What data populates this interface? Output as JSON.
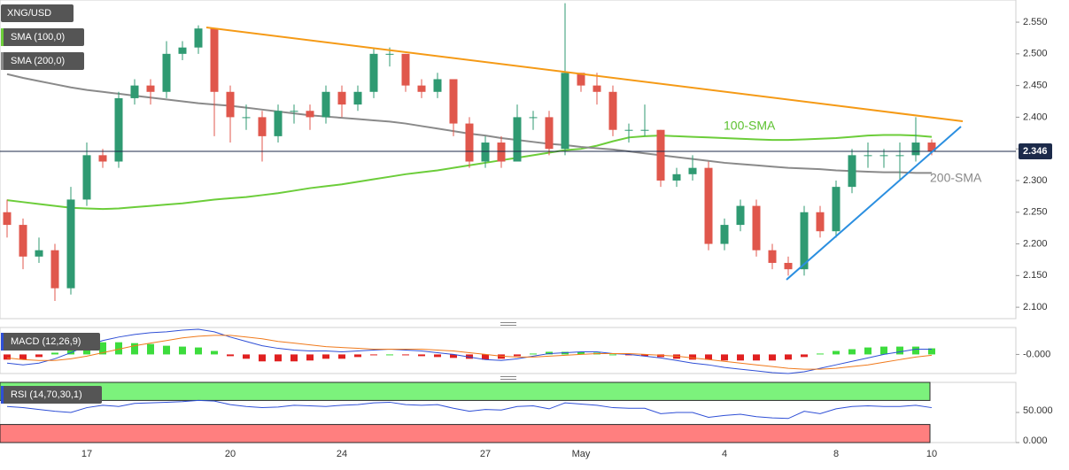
{
  "chart_data": {
    "type": "candlestick",
    "title": "XNG/USD",
    "categories": [
      null,
      null,
      null,
      null,
      null,
      "17",
      null,
      null,
      null,
      null,
      null,
      null,
      null,
      null,
      "20",
      null,
      null,
      null,
      null,
      null,
      null,
      "24",
      null,
      null,
      null,
      null,
      null,
      null,
      null,
      null,
      "27",
      null,
      null,
      null,
      null,
      null,
      "May",
      null,
      null,
      null,
      null,
      null,
      null,
      null,
      null,
      "4",
      null,
      null,
      null,
      null,
      null,
      null,
      "8",
      null,
      null,
      null,
      null,
      null,
      "10"
    ],
    "open": [
      2.25,
      2.23,
      2.18,
      2.19,
      2.13,
      2.27,
      2.34,
      2.33,
      2.43,
      2.45,
      2.44,
      2.5,
      2.51,
      2.54,
      2.44,
      2.4,
      2.4,
      2.37,
      2.41,
      2.41,
      2.4,
      2.44,
      2.42,
      2.44,
      2.5,
      2.5,
      2.45,
      2.44,
      2.46,
      2.39,
      2.33,
      2.36,
      2.33,
      2.4,
      2.4,
      2.35,
      2.47,
      2.45,
      2.44,
      2.38,
      2.38,
      2.38,
      2.3,
      2.31,
      2.32,
      2.2,
      2.23,
      2.26,
      2.19,
      2.17,
      2.16,
      2.25,
      2.22,
      2.29,
      2.34,
      2.34,
      2.34,
      2.34,
      2.36
    ],
    "high": [
      2.27,
      2.24,
      2.21,
      2.2,
      2.29,
      2.36,
      2.35,
      2.44,
      2.46,
      2.46,
      2.52,
      2.52,
      2.545,
      2.54,
      2.45,
      2.42,
      2.41,
      2.42,
      2.42,
      2.42,
      2.45,
      2.45,
      2.45,
      2.51,
      2.51,
      2.5,
      2.46,
      2.47,
      2.46,
      2.4,
      2.37,
      2.37,
      2.42,
      2.41,
      2.41,
      2.58,
      2.47,
      2.47,
      2.45,
      2.39,
      2.42,
      2.38,
      2.32,
      2.34,
      2.33,
      2.24,
      2.27,
      2.27,
      2.2,
      2.18,
      2.26,
      2.26,
      2.3,
      2.35,
      2.36,
      2.35,
      2.36,
      2.4,
      2.365
    ],
    "low": [
      2.21,
      2.16,
      2.17,
      2.11,
      2.12,
      2.26,
      2.32,
      2.32,
      2.42,
      2.42,
      2.43,
      2.49,
      2.5,
      2.37,
      2.36,
      2.38,
      2.33,
      2.36,
      2.39,
      2.38,
      2.39,
      2.4,
      2.41,
      2.43,
      2.48,
      2.44,
      2.43,
      2.43,
      2.37,
      2.32,
      2.32,
      2.32,
      2.33,
      2.38,
      2.34,
      2.34,
      2.44,
      2.42,
      2.37,
      2.36,
      2.37,
      2.29,
      2.29,
      2.3,
      2.19,
      2.19,
      2.22,
      2.18,
      2.16,
      2.15,
      2.15,
      2.21,
      2.21,
      2.28,
      2.32,
      2.32,
      2.3,
      2.33,
      2.34
    ],
    "close": [
      2.23,
      2.18,
      2.19,
      2.13,
      2.27,
      2.34,
      2.33,
      2.43,
      2.45,
      2.44,
      2.5,
      2.51,
      2.54,
      2.44,
      2.4,
      2.4,
      2.37,
      2.41,
      2.41,
      2.4,
      2.44,
      2.42,
      2.44,
      2.5,
      2.5,
      2.45,
      2.44,
      2.46,
      2.39,
      2.33,
      2.36,
      2.33,
      2.4,
      2.4,
      2.35,
      2.47,
      2.45,
      2.44,
      2.38,
      2.38,
      2.38,
      2.3,
      2.31,
      2.32,
      2.2,
      2.23,
      2.26,
      2.19,
      2.17,
      2.16,
      2.25,
      2.22,
      2.29,
      2.34,
      2.34,
      2.34,
      2.34,
      2.36,
      2.346
    ],
    "up_color": "#2f9a72",
    "down_color": "#e0574c",
    "ylim": [
      2.082,
      2.585
    ],
    "yticks": [
      {
        "value": 2.55,
        "label": "2.550"
      },
      {
        "value": 2.5,
        "label": "2.500"
      },
      {
        "value": 2.45,
        "label": "2.450"
      },
      {
        "value": 2.4,
        "label": "2.400"
      },
      {
        "value": 2.35,
        "label": "2.350"
      },
      {
        "value": 2.3,
        "label": "2.300"
      },
      {
        "value": 2.25,
        "label": "2.250"
      },
      {
        "value": 2.2,
        "label": "2.200"
      },
      {
        "value": 2.15,
        "label": "2.150"
      },
      {
        "value": 2.1,
        "label": "2.100"
      }
    ],
    "last_price": 2.346,
    "series": [
      {
        "name": "SMA (100,0)",
        "color": "#6ccd3a",
        "values": [
          2.269,
          2.266,
          2.263,
          2.26,
          2.257,
          2.256,
          2.255,
          2.256,
          2.258,
          2.26,
          2.262,
          2.264,
          2.267,
          2.27,
          2.272,
          2.274,
          2.277,
          2.28,
          2.284,
          2.288,
          2.291,
          2.294,
          2.298,
          2.302,
          2.306,
          2.31,
          2.313,
          2.316,
          2.32,
          2.324,
          2.328,
          2.332,
          2.336,
          2.34,
          2.344,
          2.348,
          2.35,
          2.355,
          2.362,
          2.368,
          2.37,
          2.371,
          2.37,
          2.369,
          2.368,
          2.367,
          2.366,
          2.365,
          2.364,
          2.364,
          2.365,
          2.366,
          2.367,
          2.369,
          2.371,
          2.372,
          2.372,
          2.371,
          2.369
        ]
      },
      {
        "name": "SMA (200,0)",
        "color": "#8a8a8a",
        "values": [
          2.468,
          2.462,
          2.457,
          2.452,
          2.447,
          2.443,
          2.44,
          2.437,
          2.434,
          2.431,
          2.428,
          2.425,
          2.422,
          2.42,
          2.418,
          2.415,
          2.412,
          2.409,
          2.406,
          2.403,
          2.401,
          2.399,
          2.397,
          2.395,
          2.393,
          2.39,
          2.386,
          2.382,
          2.378,
          2.374,
          2.371,
          2.367,
          2.364,
          2.361,
          2.358,
          2.356,
          2.353,
          2.351,
          2.349,
          2.346,
          2.343,
          2.34,
          2.337,
          2.334,
          2.331,
          2.328,
          2.326,
          2.324,
          2.322,
          2.32,
          2.319,
          2.318,
          2.316,
          2.315,
          2.314,
          2.313,
          2.313,
          2.312,
          2.312
        ]
      }
    ],
    "annotations": [
      "100-SMA",
      "200-SMA"
    ],
    "macd": {
      "name": "MACD (12,26,9)",
      "ylim": [
        -0.022,
        0.03
      ],
      "yticks": [
        {
          "value": 0,
          "label": "-0.000"
        }
      ],
      "macd_color": "#2f4fd6",
      "signal_color": "#f07a1c",
      "macd": [
        -0.01,
        -0.012,
        -0.01,
        -0.005,
        0.002,
        0.01,
        0.016,
        0.02,
        0.023,
        0.025,
        0.026,
        0.028,
        0.029,
        0.026,
        0.02,
        0.015,
        0.01,
        0.007,
        0.005,
        0.004,
        0.004,
        0.003,
        0.004,
        0.005,
        0.006,
        0.005,
        0.004,
        0.002,
        0.0,
        -0.003,
        -0.006,
        -0.007,
        -0.005,
        -0.002,
        0.001,
        0.002,
        0.003,
        0.003,
        0.001,
        0.0,
        -0.002,
        -0.004,
        -0.007,
        -0.01,
        -0.012,
        -0.015,
        -0.017,
        -0.019,
        -0.021,
        -0.022,
        -0.02,
        -0.016,
        -0.012,
        -0.008,
        -0.004,
        0.0,
        0.003,
        0.006,
        0.006
      ],
      "signal": [
        -0.004,
        -0.006,
        -0.007,
        -0.007,
        -0.005,
        -0.002,
        0.002,
        0.006,
        0.01,
        0.013,
        0.016,
        0.019,
        0.021,
        0.022,
        0.022,
        0.02,
        0.018,
        0.015,
        0.013,
        0.011,
        0.009,
        0.008,
        0.007,
        0.006,
        0.006,
        0.006,
        0.006,
        0.005,
        0.004,
        0.002,
        0.0,
        -0.002,
        -0.003,
        -0.003,
        -0.002,
        -0.001,
        0.0,
        0.001,
        0.001,
        0.001,
        0.0,
        -0.001,
        -0.002,
        -0.004,
        -0.006,
        -0.008,
        -0.01,
        -0.012,
        -0.014,
        -0.016,
        -0.017,
        -0.017,
        -0.016,
        -0.014,
        -0.012,
        -0.009,
        -0.006,
        -0.003,
        -0.001
      ],
      "histogram": [
        -0.006,
        -0.006,
        -0.003,
        0.002,
        0.007,
        0.012,
        0.014,
        0.014,
        0.013,
        0.012,
        0.01,
        0.009,
        0.008,
        0.004,
        -0.002,
        -0.005,
        -0.008,
        -0.008,
        -0.008,
        -0.007,
        -0.005,
        -0.005,
        -0.003,
        -0.001,
        0.0,
        -0.001,
        -0.002,
        -0.003,
        -0.004,
        -0.005,
        -0.006,
        -0.005,
        -0.002,
        0.001,
        0.003,
        0.003,
        0.003,
        0.002,
        0.0,
        -0.001,
        -0.002,
        -0.003,
        -0.005,
        -0.006,
        -0.006,
        -0.007,
        -0.007,
        -0.007,
        -0.007,
        -0.006,
        -0.003,
        0.001,
        0.004,
        0.006,
        0.008,
        0.009,
        0.009,
        0.009,
        0.007
      ]
    },
    "rsi": {
      "name": "RSI (14,70,30,1)",
      "ylim": [
        0,
        100
      ],
      "yticks": [
        {
          "value": 50,
          "label": "50.000"
        },
        {
          "value": 0,
          "label": "0.000"
        }
      ],
      "upper": 70,
      "lower": 30,
      "color": "#2f4fd6",
      "values": [
        60,
        58,
        55,
        52,
        50,
        58,
        62,
        60,
        65,
        66,
        67,
        68,
        70,
        69,
        63,
        60,
        58,
        59,
        62,
        61,
        60,
        62,
        63,
        66,
        67,
        63,
        62,
        63,
        57,
        52,
        55,
        54,
        60,
        61,
        56,
        66,
        64,
        62,
        58,
        57,
        57,
        48,
        50,
        50,
        42,
        45,
        47,
        43,
        41,
        40,
        52,
        48,
        56,
        60,
        61,
        60,
        60,
        62,
        58
      ]
    }
  }
}
